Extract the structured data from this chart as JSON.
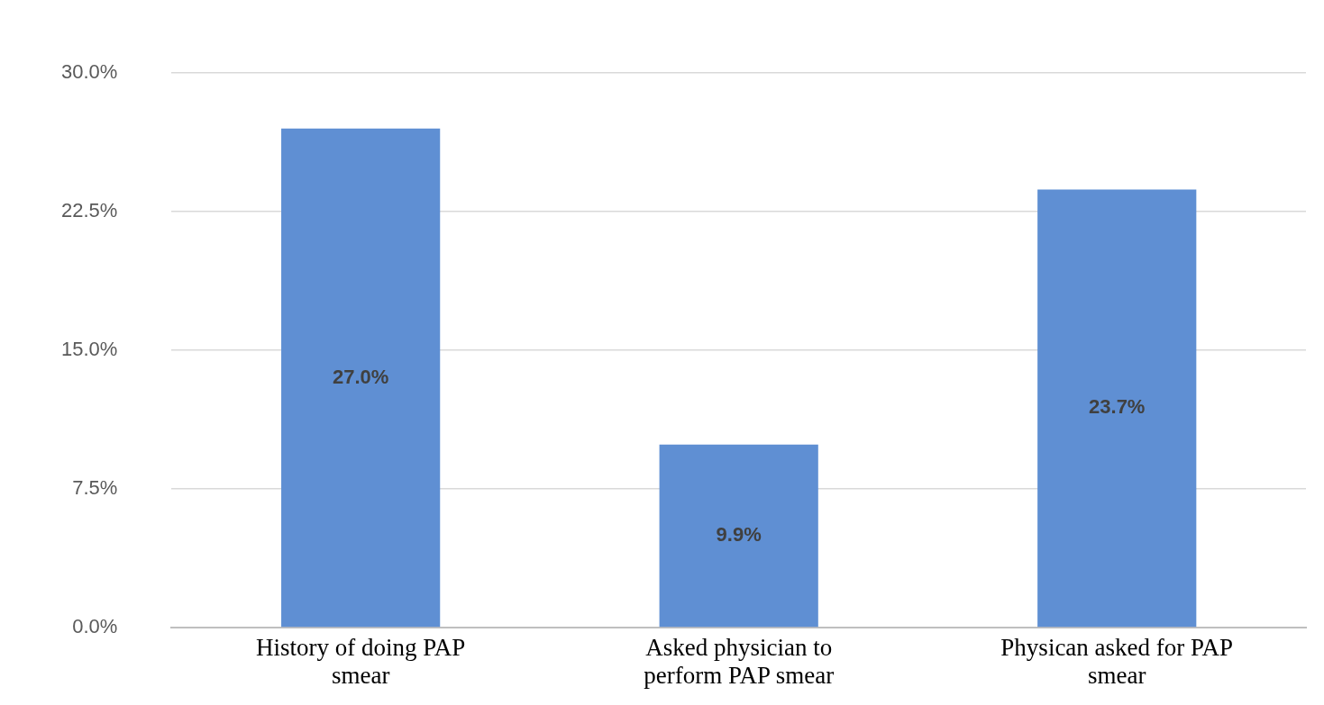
{
  "chart_data": {
    "type": "bar",
    "categories": [
      "History of doing PAP smear",
      "Asked physician to perform PAP smear",
      "Physican asked for PAP smear"
    ],
    "values": [
      27.0,
      9.9,
      23.7
    ],
    "color": "#5f8fd3",
    "value_labels": [
      "27.0%",
      "9.9%",
      "23.7%"
    ],
    "ylim": [
      0,
      30
    ],
    "yticks": [
      {
        "value": 0,
        "label": "0.0%"
      },
      {
        "value": 7.5,
        "label": "7.5%"
      },
      {
        "value": 15,
        "label": "15.0%"
      },
      {
        "value": 22.5,
        "label": "22.5%"
      },
      {
        "value": 30,
        "label": "30.0%"
      }
    ],
    "grid": "y",
    "legend": false
  }
}
